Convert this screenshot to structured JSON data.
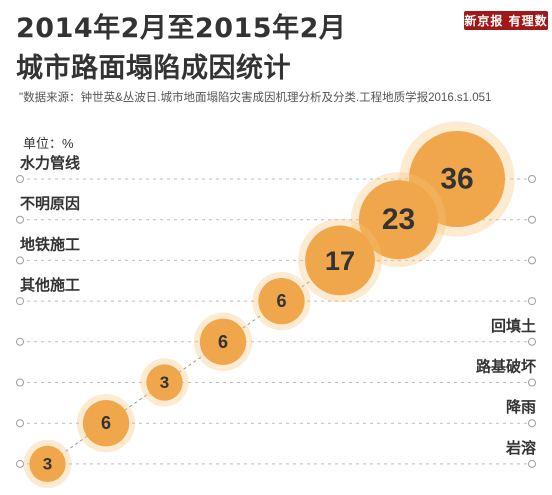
{
  "header": {
    "title_line1": "2014年2月至2015年2月",
    "title_line2": "城市路面塌陷成因统计",
    "source": "\"数据来源：钟世英&丛波日.城市地面塌陷灾害成因机理分析及分类.工程地质学报2016.s1.051",
    "unit": "单位：%"
  },
  "logo": {
    "text": "新京报 有理数"
  },
  "chart_data": {
    "type": "bubble",
    "unit": "%",
    "categories": [
      "水力管线",
      "不明原因",
      "地铁施工",
      "其他施工",
      "回填土",
      "路基破坏",
      "降雨",
      "岩溶"
    ],
    "values": [
      36,
      23,
      17,
      6,
      6,
      3,
      6,
      3
    ],
    "label_side": [
      "left",
      "left",
      "left",
      "left",
      "right",
      "right",
      "right",
      "right"
    ]
  },
  "colors": {
    "bubble": "#f0a64a",
    "bubble_light": "#f7c27a",
    "text": "#333333",
    "grid": "#bdbdbd",
    "connector": "#999999"
  }
}
